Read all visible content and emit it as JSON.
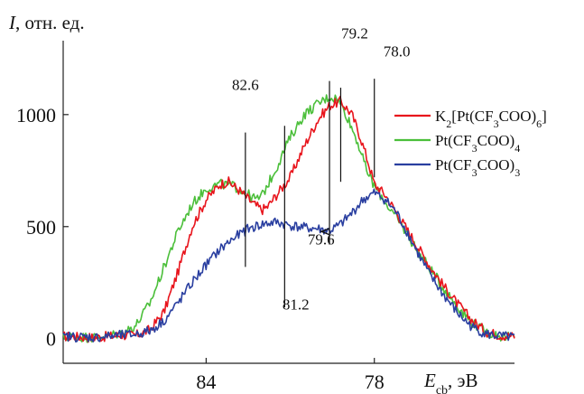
{
  "chart_data": {
    "type": "line",
    "ylabel_symbol": "I",
    "ylabel_rest": ", отн. ед.",
    "xlabel_symbol": "E",
    "xlabel_sub": "cb",
    "xlabel_rest": ", эВ",
    "x_reversed": true,
    "xlim": [
      89.1,
      73.0
    ],
    "ylim": [
      -110,
      1330
    ],
    "x_ticks": [
      84,
      78
    ],
    "y_ticks": [
      0,
      500,
      1000
    ],
    "legend_position": "right",
    "series": [
      {
        "name_html": "K<tspan baseline-shift='sub' font-size='12'>2</tspan>[Pt(CF<tspan baseline-shift='sub' font-size='12'>3</tspan>COO)<tspan baseline-shift='sub' font-size='12'>6</tspan>]",
        "name": "K2[Pt(CF3COO)6]",
        "color": "#e8141c",
        "points": [
          [
            89,
            10
          ],
          [
            88,
            5
          ],
          [
            87,
            15
          ],
          [
            86.5,
            15
          ],
          [
            86,
            40
          ],
          [
            85.5,
            120
          ],
          [
            85,
            300
          ],
          [
            84.5,
            500
          ],
          [
            84,
            620
          ],
          [
            83.5,
            690
          ],
          [
            83.2,
            700
          ],
          [
            82.8,
            660
          ],
          [
            82.3,
            600
          ],
          [
            82,
            575
          ],
          [
            81.8,
            590
          ],
          [
            81.5,
            640
          ],
          [
            81,
            720
          ],
          [
            80.5,
            860
          ],
          [
            80,
            980
          ],
          [
            79.6,
            1040
          ],
          [
            79.2,
            1060
          ],
          [
            78.8,
            1000
          ],
          [
            78.5,
            900
          ],
          [
            78.2,
            780
          ],
          [
            78,
            690
          ],
          [
            77.6,
            640
          ],
          [
            77,
            520
          ],
          [
            76.5,
            420
          ],
          [
            76,
            320
          ],
          [
            75.5,
            230
          ],
          [
            75,
            150
          ],
          [
            74.5,
            80
          ],
          [
            74,
            30
          ],
          [
            73.5,
            15
          ],
          [
            73,
            10
          ]
        ]
      },
      {
        "name": "Pt(CF3COO)4",
        "name_html": "Pt(CF<tspan baseline-shift='sub' font-size='12'>3</tspan>COO)<tspan baseline-shift='sub' font-size='12'>4</tspan>",
        "color": "#4bbf3a",
        "points": [
          [
            89,
            10
          ],
          [
            88,
            5
          ],
          [
            87,
            25
          ],
          [
            86.5,
            60
          ],
          [
            86,
            160
          ],
          [
            85.5,
            320
          ],
          [
            85,
            480
          ],
          [
            84.5,
            600
          ],
          [
            84,
            670
          ],
          [
            83.5,
            690
          ],
          [
            83,
            680
          ],
          [
            82.6,
            650
          ],
          [
            82.2,
            620
          ],
          [
            82,
            640
          ],
          [
            81.5,
            760
          ],
          [
            81,
            900
          ],
          [
            80.5,
            1000
          ],
          [
            80,
            1050
          ],
          [
            79.6,
            1080
          ],
          [
            79.3,
            1070
          ],
          [
            79,
            1000
          ],
          [
            78.6,
            880
          ],
          [
            78.3,
            760
          ],
          [
            78,
            680
          ],
          [
            77.5,
            590
          ],
          [
            77,
            500
          ],
          [
            76.5,
            400
          ],
          [
            76,
            310
          ],
          [
            75.5,
            220
          ],
          [
            75,
            140
          ],
          [
            74.5,
            70
          ],
          [
            74,
            30
          ],
          [
            73.5,
            10
          ],
          [
            73,
            5
          ]
        ]
      },
      {
        "name": "Pt(CF3COO)3",
        "name_html": "Pt(CF<tspan baseline-shift='sub' font-size='12'>3</tspan>COO)<tspan baseline-shift='sub' font-size='12'>3</tspan>",
        "color": "#2a3fa0",
        "points": [
          [
            89,
            10
          ],
          [
            88,
            5
          ],
          [
            87,
            15
          ],
          [
            86.5,
            20
          ],
          [
            86,
            35
          ],
          [
            85.5,
            80
          ],
          [
            85,
            160
          ],
          [
            84.5,
            250
          ],
          [
            84,
            330
          ],
          [
            83.5,
            400
          ],
          [
            83,
            450
          ],
          [
            82.5,
            490
          ],
          [
            82,
            510
          ],
          [
            81.5,
            520
          ],
          [
            81,
            505
          ],
          [
            80.5,
            495
          ],
          [
            80,
            490
          ],
          [
            79.6,
            480
          ],
          [
            79.2,
            510
          ],
          [
            78.8,
            560
          ],
          [
            78.4,
            620
          ],
          [
            78,
            650
          ],
          [
            77.6,
            620
          ],
          [
            77.2,
            560
          ],
          [
            76.8,
            470
          ],
          [
            76.4,
            370
          ],
          [
            76,
            280
          ],
          [
            75.5,
            190
          ],
          [
            75,
            110
          ],
          [
            74.5,
            50
          ],
          [
            74,
            20
          ],
          [
            73.5,
            10
          ],
          [
            73,
            5
          ]
        ]
      }
    ],
    "annotations": [
      {
        "label": "82.6",
        "x": 82.6,
        "y_top": 920,
        "y_bottom": 320,
        "label_x": 82.6,
        "label_y": 1110
      },
      {
        "label": "81.2",
        "x": 81.2,
        "y_top": 950,
        "y_bottom": 140,
        "label_x": 80.8,
        "label_y": 130
      },
      {
        "label": "79.6",
        "x": 79.6,
        "y_top": 1150,
        "y_bottom": 420,
        "label_x": 79.9,
        "label_y": 420
      },
      {
        "label": "79.2",
        "x": 79.2,
        "y_top": 1120,
        "y_bottom": 700,
        "label_x": 78.7,
        "label_y": 1340
      },
      {
        "label": "78.0",
        "x": 78.0,
        "y_top": 1160,
        "y_bottom": 720,
        "label_x": 77.2,
        "label_y": 1260
      }
    ]
  }
}
